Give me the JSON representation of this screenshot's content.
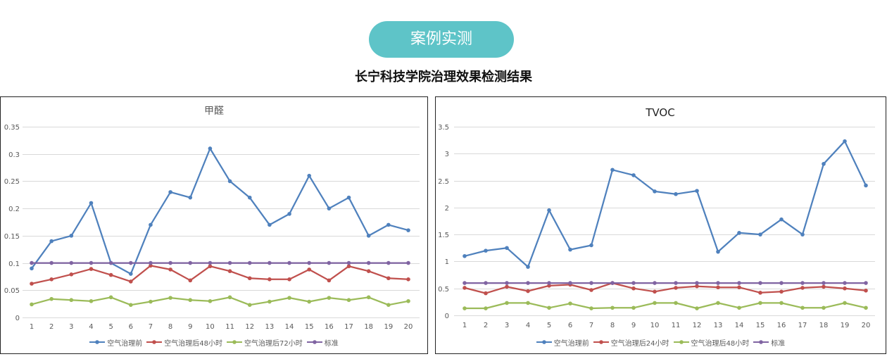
{
  "header": {
    "badge_label": "案例实测",
    "subtitle": "长宁科技学院治理效果检测结果"
  },
  "colors": {
    "badge": "#5ec4c8",
    "gridline": "#d9d9d9",
    "tick_label": "#595959"
  },
  "chart_data": [
    {
      "type": "line",
      "title": "甲醛",
      "title_color": "#595959",
      "x": [
        1,
        2,
        3,
        4,
        5,
        6,
        7,
        8,
        9,
        10,
        11,
        12,
        13,
        14,
        15,
        16,
        17,
        18,
        19,
        20
      ],
      "ylim": [
        0,
        0.35
      ],
      "yticks": [
        0,
        0.05,
        0.1,
        0.15,
        0.2,
        0.25,
        0.3,
        0.35
      ],
      "grid": true,
      "legend": "bottom",
      "series": [
        {
          "name": "空气治理前",
          "color": "#4f81bd",
          "values": [
            0.09,
            0.14,
            0.15,
            0.21,
            0.1,
            0.08,
            0.17,
            0.23,
            0.22,
            0.31,
            0.25,
            0.22,
            0.17,
            0.19,
            0.26,
            0.2,
            0.22,
            0.15,
            0.17,
            0.16
          ]
        },
        {
          "name": "空气治理后48小时",
          "color": "#c0504d",
          "values": [
            0.062,
            0.07,
            0.079,
            0.089,
            0.078,
            0.066,
            0.095,
            0.088,
            0.068,
            0.094,
            0.085,
            0.072,
            0.07,
            0.07,
            0.088,
            0.068,
            0.094,
            0.085,
            0.072,
            0.07
          ]
        },
        {
          "name": "空气治理后72小时",
          "color": "#9bbb59",
          "values": [
            0.024,
            0.034,
            0.032,
            0.03,
            0.037,
            0.023,
            0.029,
            0.036,
            0.032,
            0.03,
            0.037,
            0.023,
            0.029,
            0.036,
            0.029,
            0.036,
            0.032,
            0.037,
            0.023,
            0.03
          ]
        },
        {
          "name": "标准",
          "color": "#8064a2",
          "values": [
            0.1,
            0.1,
            0.1,
            0.1,
            0.1,
            0.1,
            0.1,
            0.1,
            0.1,
            0.1,
            0.1,
            0.1,
            0.1,
            0.1,
            0.1,
            0.1,
            0.1,
            0.1,
            0.1,
            0.1
          ]
        }
      ]
    },
    {
      "type": "line",
      "title": "TVOC",
      "title_color": "#222222",
      "x": [
        1,
        2,
        3,
        4,
        5,
        6,
        7,
        8,
        9,
        10,
        11,
        12,
        13,
        14,
        15,
        16,
        17,
        18,
        19,
        20
      ],
      "ylim": [
        0,
        3.5
      ],
      "yticks": [
        0,
        0.5,
        1,
        1.5,
        2,
        2.5,
        3,
        3.5
      ],
      "grid": true,
      "legend": "bottom",
      "series": [
        {
          "name": "空气治理前",
          "color": "#4f81bd",
          "values": [
            1.1,
            1.2,
            1.25,
            0.9,
            1.95,
            1.22,
            1.3,
            2.7,
            2.6,
            2.3,
            2.25,
            2.31,
            1.18,
            1.53,
            1.5,
            1.78,
            1.5,
            2.81,
            3.23,
            2.41
          ]
        },
        {
          "name": "空气治理后24小时",
          "color": "#c0504d",
          "values": [
            0.51,
            0.41,
            0.53,
            0.45,
            0.55,
            0.57,
            0.47,
            0.6,
            0.5,
            0.44,
            0.51,
            0.54,
            0.52,
            0.52,
            0.42,
            0.44,
            0.51,
            0.53,
            0.5,
            0.46
          ]
        },
        {
          "name": "空气治理后48小时",
          "color": "#9bbb59",
          "values": [
            0.13,
            0.13,
            0.23,
            0.23,
            0.14,
            0.22,
            0.13,
            0.14,
            0.14,
            0.23,
            0.23,
            0.13,
            0.23,
            0.14,
            0.23,
            0.23,
            0.14,
            0.14,
            0.23,
            0.14
          ]
        },
        {
          "name": "标准",
          "color": "#8064a2",
          "values": [
            0.6,
            0.6,
            0.6,
            0.6,
            0.6,
            0.6,
            0.6,
            0.6,
            0.6,
            0.6,
            0.6,
            0.6,
            0.6,
            0.6,
            0.6,
            0.6,
            0.6,
            0.6,
            0.6,
            0.6
          ]
        }
      ]
    }
  ]
}
